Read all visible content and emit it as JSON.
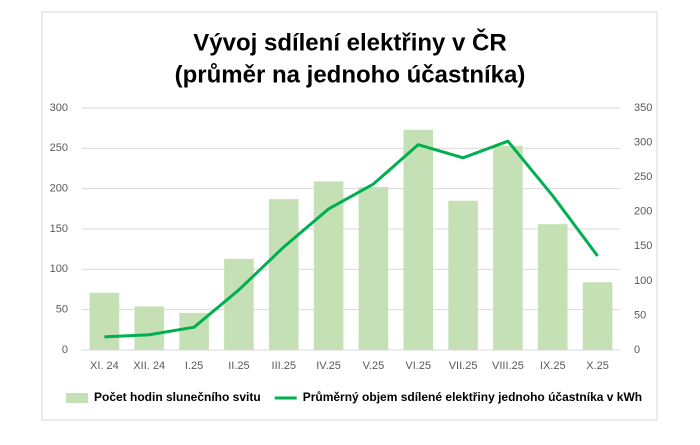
{
  "chart_data": {
    "type": "bar-line",
    "title": [
      "Vývoj sdílení elektřiny v ČR",
      "(průměr na jednoho účastníka)"
    ],
    "categories": [
      "XI. 24",
      "XII. 24",
      "I.25",
      "II.25",
      "III.25",
      "IV.25",
      "V.25",
      "VI.25",
      "VII.25",
      "VIII.25",
      "IX.25",
      "X.25"
    ],
    "series": [
      {
        "name": "Počet hodin slunečního svitu",
        "type": "bar",
        "color": "#c5e0b4",
        "values": [
          71,
          54,
          46,
          113,
          187,
          209,
          202,
          273,
          185,
          253,
          156,
          84
        ]
      },
      {
        "name": "Průměrný objem sdílené elektřiny jednoho účastníka v kWh",
        "type": "line",
        "color": "#00b050",
        "axis": "y2",
        "values": [
          19,
          22,
          33,
          87,
          149,
          204,
          240,
          297,
          278,
          302,
          223,
          136
        ]
      }
    ],
    "ylim": [
      0,
      300
    ],
    "yticks": [
      0,
      50,
      100,
      150,
      200,
      250,
      300
    ],
    "y2lim": [
      0,
      350
    ],
    "y2ticks": [
      0,
      50,
      100,
      150,
      200,
      250,
      300,
      350
    ],
    "grid": true,
    "legend": "bottom"
  }
}
